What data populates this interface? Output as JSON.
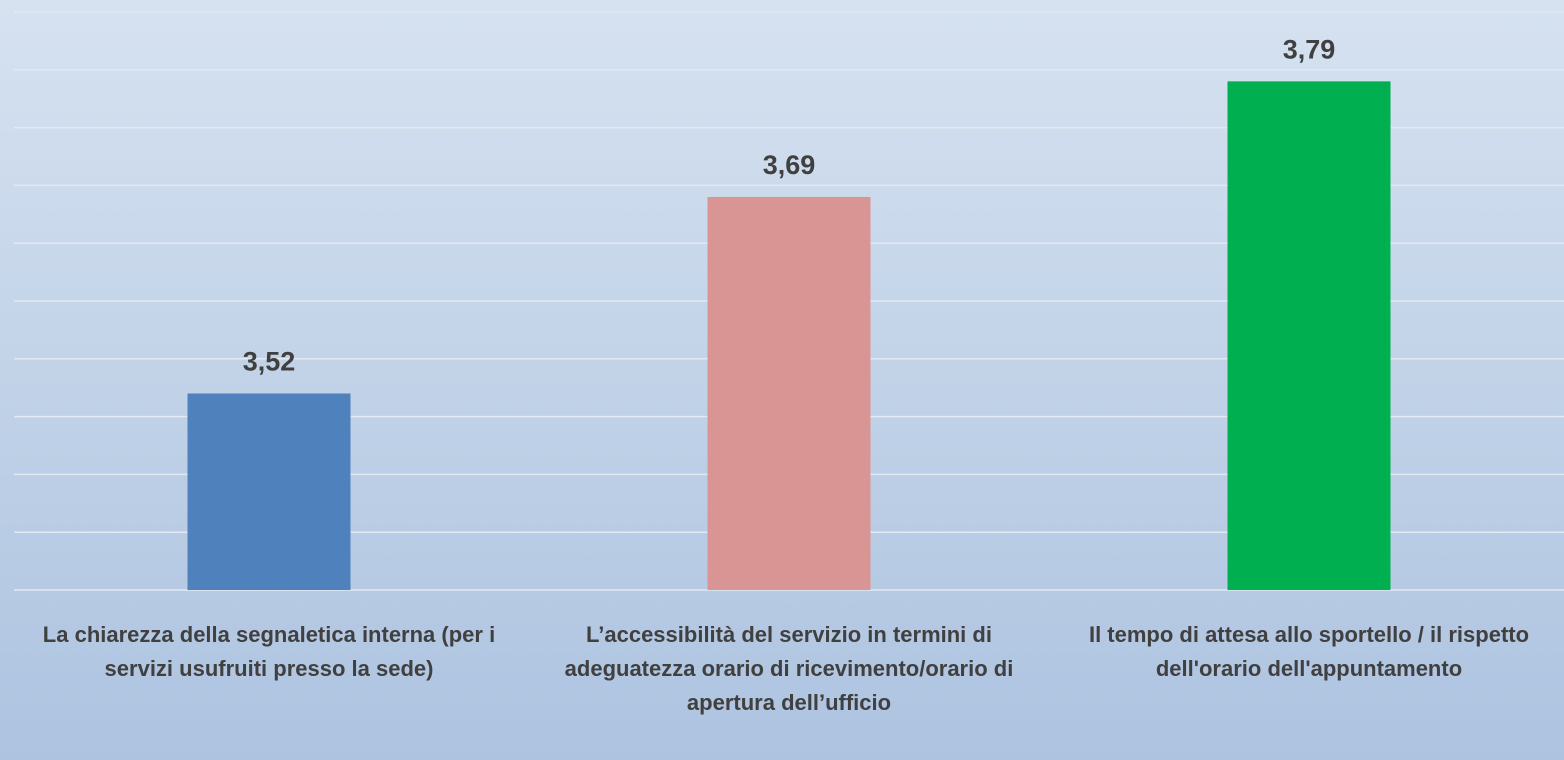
{
  "chart_data": {
    "type": "bar",
    "categories": [
      "La chiarezza della segnaletica interna (per i servizi usufruiti presso la sede)",
      "L’accessibilità del servizio in termini di adeguatezza orario di ricevimento/orario di apertura dell’ufficio",
      "Il tempo di attesa allo sportello / il rispetto dell'orario dell'appuntamento"
    ],
    "values": [
      3.52,
      3.69,
      3.79
    ],
    "value_labels": [
      "3,52",
      "3,69",
      "3,79"
    ],
    "colors": [
      "#4f81bd",
      "#d99594",
      "#00b050"
    ],
    "ylim": [
      3.35,
      3.85
    ],
    "yticks": [
      3.35,
      3.4,
      3.45,
      3.5,
      3.55,
      3.6,
      3.65,
      3.7,
      3.75,
      3.8,
      3.85
    ],
    "grid": true
  }
}
